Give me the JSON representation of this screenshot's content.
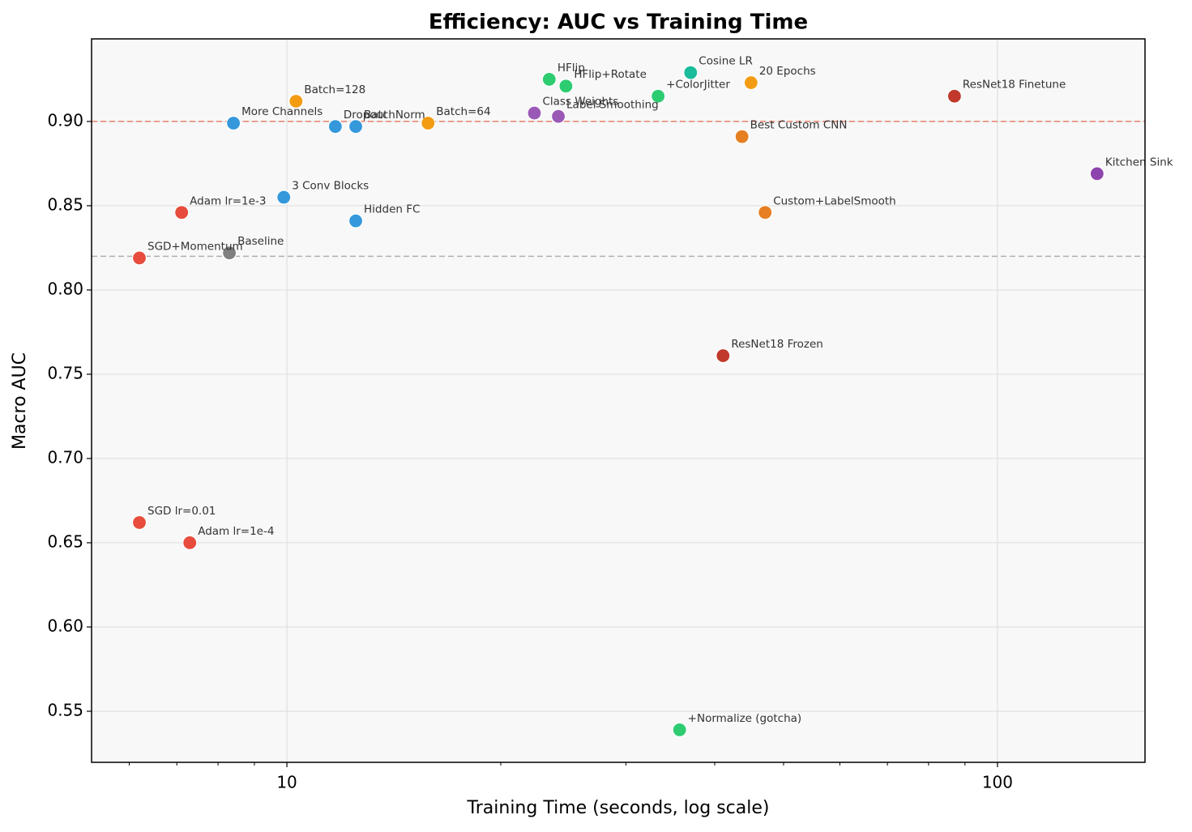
{
  "chart_data": {
    "type": "scatter",
    "title": "Efficiency: AUC vs Training Time",
    "xlabel": "Training Time (seconds, log scale)",
    "ylabel": "Macro AUC",
    "xscale": "log",
    "grid": true,
    "xlim": [
      5.31,
      161.3
    ],
    "ylim": [
      0.5197,
      0.949
    ],
    "xticks": [
      10,
      100
    ],
    "xminorticks": [
      6,
      7,
      8,
      9,
      20,
      30,
      40,
      50,
      60,
      70,
      80,
      90
    ],
    "yticks": [
      0.55,
      {
        "value": 0.6,
        "label": "0.60"
      },
      0.65,
      {
        "value": 0.7,
        "label": "0.70"
      },
      0.75,
      {
        "value": 0.8,
        "label": "0.80"
      },
      0.85,
      {
        "value": 0.9,
        "label": "0.90"
      }
    ],
    "reference_lines": [
      {
        "value": 0.9,
        "color": "#e8806c"
      },
      {
        "value": 0.82,
        "color": "#b0b0b0"
      }
    ],
    "labels": [
      "SGD+Momentum",
      "SGD lr=0.01",
      "Adam lr=1e-3",
      "Adam lr=1e-4",
      "Baseline",
      "More Channels",
      "3 Conv Blocks",
      "Batch=128",
      "Dropout",
      "BatchNorm",
      "Hidden FC",
      "Batch=64",
      "Class Weights",
      "Label Smoothing",
      "HFlip",
      "HFlip+Rotate",
      "+ColorJitter",
      "Cosine LR",
      "20 Epochs",
      "Best Custom CNN",
      "Custom+LabelSmooth",
      "ResNet18 Frozen",
      "+Normalize (gotcha)",
      "ResNet18 Finetune",
      "Kitchen Sink"
    ],
    "x": [
      6.2,
      6.2,
      7.11,
      7.3,
      8.3,
      8.41,
      9.9,
      10.3,
      11.7,
      12.5,
      12.5,
      15.8,
      22.3,
      24.1,
      23.4,
      24.7,
      33.3,
      37.0,
      45.0,
      43.7,
      47.1,
      41.1,
      35.7,
      87.0,
      138.1
    ],
    "values": [
      0.819,
      0.662,
      0.846,
      0.65,
      0.822,
      0.899,
      0.855,
      0.912,
      0.897,
      0.897,
      0.841,
      0.899,
      0.905,
      0.903,
      0.925,
      0.921,
      0.915,
      0.929,
      0.923,
      0.891,
      0.846,
      0.761,
      0.539,
      0.915,
      0.869
    ],
    "colors": [
      "#e74c3c",
      "#e74c3c",
      "#e74c3c",
      "#e74c3c",
      "#7f7f7f",
      "#3498db",
      "#3498db",
      "#f39c12",
      "#3498db",
      "#3498db",
      "#3498db",
      "#f39c12",
      "#9b59b6",
      "#9b59b6",
      "#2ecc71",
      "#2ecc71",
      "#2ecc71",
      "#1abc9c",
      "#f39c12",
      "#e67e22",
      "#e67e22",
      "#c0392b",
      "#2ecc71",
      "#c0392b",
      "#8e44ad"
    ]
  }
}
